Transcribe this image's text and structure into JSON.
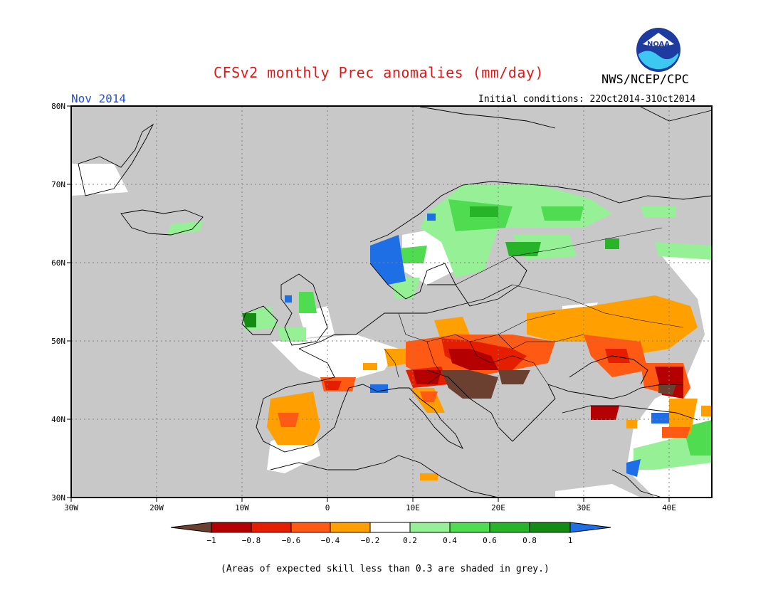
{
  "header": {
    "title": "CFSv2 monthly Prec anomalies (mm/day)",
    "agency": "NWS/NCEP/CPC",
    "logo_text": "NOAA",
    "month": "Nov 2014",
    "initial_conditions": "Initial conditions: 22Oct2014-31Oct2014"
  },
  "map": {
    "region": "Europe",
    "lon_range": [
      -30,
      45
    ],
    "lat_range": [
      30,
      80
    ],
    "grey_color": "#c8c8c8",
    "lat_labels": [
      "80N",
      "70N",
      "60N",
      "50N",
      "40N",
      "30N"
    ],
    "lon_labels": [
      "30W",
      "20W",
      "10W",
      "0",
      "10E",
      "20E",
      "30E",
      "40E"
    ]
  },
  "colorbar": {
    "labels": [
      "−1",
      "−0.8",
      "−0.6",
      "−0.4",
      "−0.2",
      "0.2",
      "0.4",
      "0.6",
      "0.8",
      "1"
    ],
    "colors": [
      "#6b4030",
      "#b40000",
      "#e61e00",
      "#ff5a14",
      "#ffa000",
      "#ffffff",
      "#96f096",
      "#50dc50",
      "#28b428",
      "#148c14",
      "#1e6ee6"
    ]
  },
  "footnote": "(Areas of expected skill less than 0.3 are shaded in grey.)"
}
